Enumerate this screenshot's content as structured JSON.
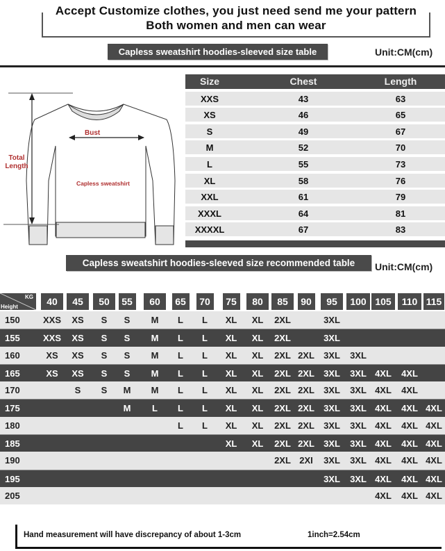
{
  "header": {
    "line1": "Accept Customize clothes, you just need send me your pattern",
    "line2": "Both women and men can wear"
  },
  "size_table": {
    "title": "Capless sweatshirt hoodies-sleeved size  table",
    "unit": "Unit:CM(cm)",
    "columns": [
      "Size",
      "Chest",
      "Length"
    ],
    "rows": [
      [
        "XXS",
        "43",
        "63"
      ],
      [
        "XS",
        "46",
        "65"
      ],
      [
        "S",
        "49",
        "67"
      ],
      [
        "M",
        "52",
        "70"
      ],
      [
        "L",
        "55",
        "73"
      ],
      [
        "XL",
        "58",
        "76"
      ],
      [
        "XXL",
        "61",
        "79"
      ],
      [
        "XXXL",
        "64",
        "81"
      ],
      [
        "XXXXL",
        "67",
        "83"
      ]
    ]
  },
  "diagram": {
    "bust": "Bust",
    "total_length": "Total Length",
    "garment": "Capless sweatshirt"
  },
  "recommend_table": {
    "title": "Capless sweatshirt hoodies-sleeved size recommended table",
    "unit": "Unit:CM(cm)",
    "corner_top": "KG",
    "corner_bottom": "Height",
    "weights": [
      "40",
      "45",
      "50",
      "55",
      "60",
      "65",
      "70",
      "75",
      "80",
      "85",
      "90",
      "95",
      "100",
      "105",
      "110",
      "115"
    ],
    "rows": [
      {
        "height": "150",
        "sizes": [
          "XXS",
          "XS",
          "S",
          "S",
          "M",
          "L",
          "L",
          "XL",
          "XL",
          "2XL",
          "",
          "3XL",
          "",
          "",
          "",
          ""
        ]
      },
      {
        "height": "155",
        "sizes": [
          "XXS",
          "XS",
          "S",
          "S",
          "M",
          "L",
          "L",
          "XL",
          "XL",
          "2XL",
          "",
          "3XL",
          "",
          "",
          "",
          ""
        ]
      },
      {
        "height": "160",
        "sizes": [
          "XS",
          "XS",
          "S",
          "S",
          "M",
          "L",
          "L",
          "XL",
          "XL",
          "2XL",
          "2XL",
          "3XL",
          "3XL",
          "",
          "",
          ""
        ]
      },
      {
        "height": "165",
        "sizes": [
          "XS",
          "XS",
          "S",
          "S",
          "M",
          "L",
          "L",
          "XL",
          "XL",
          "2XL",
          "2XL",
          "3XL",
          "3XL",
          "4XL",
          "4XL",
          ""
        ]
      },
      {
        "height": "170",
        "sizes": [
          "",
          "S",
          "S",
          "M",
          "M",
          "L",
          "L",
          "XL",
          "XL",
          "2XL",
          "2XL",
          "3XL",
          "3XL",
          "4XL",
          "4XL",
          ""
        ]
      },
      {
        "height": "175",
        "sizes": [
          "",
          "",
          "",
          "M",
          "L",
          "L",
          "L",
          "XL",
          "XL",
          "2XL",
          "2XL",
          "3XL",
          "3XL",
          "4XL",
          "4XL",
          "4XL"
        ]
      },
      {
        "height": "180",
        "sizes": [
          "",
          "",
          "",
          "",
          "",
          "L",
          "L",
          "XL",
          "XL",
          "2XL",
          "2XL",
          "3XL",
          "3XL",
          "4XL",
          "4XL",
          "4XL"
        ]
      },
      {
        "height": "185",
        "sizes": [
          "",
          "",
          "",
          "",
          "",
          "",
          "",
          "XL",
          "XL",
          "2XL",
          "2XL",
          "3XL",
          "3XL",
          "4XL",
          "4XL",
          "4XL"
        ]
      },
      {
        "height": "190",
        "sizes": [
          "",
          "",
          "",
          "",
          "",
          "",
          "",
          "",
          "",
          "2XL",
          "2XI",
          "3XL",
          "3XL",
          "4XL",
          "4XL",
          "4XL"
        ]
      },
      {
        "height": "195",
        "sizes": [
          "",
          "",
          "",
          "",
          "",
          "",
          "",
          "",
          "",
          "",
          "",
          "3XL",
          "3XL",
          "4XL",
          "4XL",
          "4XL"
        ]
      },
      {
        "height": "205",
        "sizes": [
          "",
          "",
          "",
          "",
          "",
          "",
          "",
          "",
          "",
          "",
          "",
          "",
          "",
          "4XL",
          "4XL",
          "4XL"
        ]
      }
    ]
  },
  "footer": {
    "note": "Hand measurement will have discrepancy of about  1-3cm",
    "conversion": "1inch=2.54cm"
  },
  "colors": {
    "dark": "#4a4a4a",
    "light": "#e6e6e6",
    "label_red": "#b03030"
  }
}
